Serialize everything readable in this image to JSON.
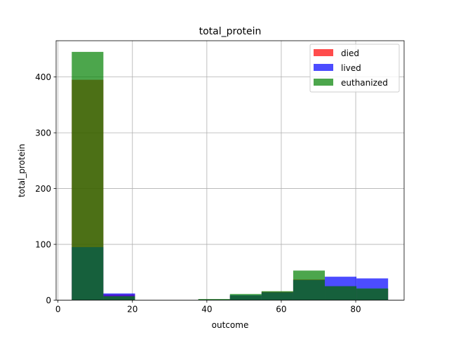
{
  "chart_data": {
    "type": "bar",
    "title": "total_protein",
    "xlabel": "outcome",
    "ylabel": "total_protein",
    "xlim": [
      -0.5,
      93
    ],
    "ylim": [
      0,
      465
    ],
    "xticks": [
      0,
      20,
      40,
      60,
      80
    ],
    "yticks": [
      0,
      100,
      200,
      300,
      400
    ],
    "xtick_labels": [
      "0",
      "20",
      "40",
      "60",
      "80"
    ],
    "ytick_labels": [
      "0",
      "100",
      "200",
      "300",
      "400"
    ],
    "grid": true,
    "legend_position": "top-right",
    "bin_edges": [
      3.7,
      12.2,
      20.7,
      29.2,
      37.7,
      46.2,
      54.7,
      63.2,
      71.7,
      80.2,
      88.7
    ],
    "series": [
      {
        "name": "died",
        "color": "#ff0000",
        "alpha": 0.7,
        "values": [
          395,
          10,
          0,
          0,
          1,
          8,
          15,
          37,
          25,
          20
        ]
      },
      {
        "name": "lived",
        "color": "#0000ff",
        "alpha": 0.7,
        "values": [
          95,
          12,
          0,
          0,
          1,
          9,
          14,
          36,
          42,
          39
        ]
      },
      {
        "name": "euthanized",
        "color": "#008000",
        "alpha": 0.7,
        "values": [
          445,
          7,
          0,
          0,
          2,
          11,
          16,
          53,
          25,
          21
        ]
      }
    ]
  }
}
